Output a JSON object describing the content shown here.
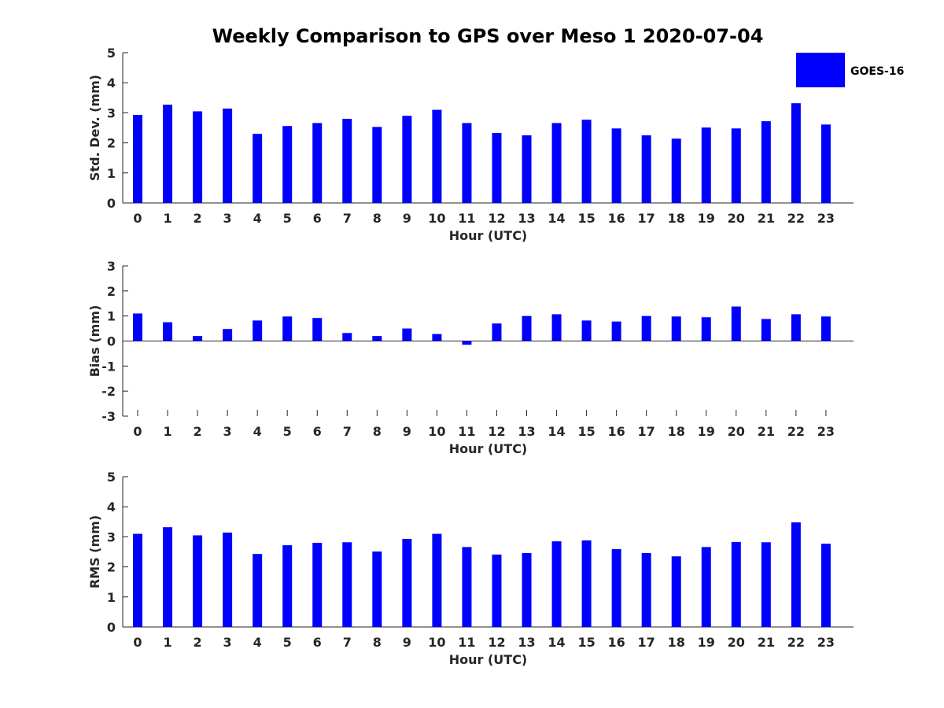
{
  "chart_data": [
    {
      "type": "bar",
      "title": "Weekly Comparison to GPS over Meso 1 2020-07-04",
      "xlabel": "Hour (UTC)",
      "ylabel": "Std. Dev. (mm)",
      "ylim": [
        0,
        5
      ],
      "yticks": [
        "0",
        "1",
        "2",
        "3",
        "4",
        "5"
      ],
      "categories": [
        "0",
        "1",
        "2",
        "3",
        "4",
        "5",
        "6",
        "7",
        "8",
        "9",
        "10",
        "11",
        "12",
        "13",
        "14",
        "15",
        "16",
        "17",
        "18",
        "19",
        "20",
        "21",
        "22",
        "23"
      ],
      "series": [
        {
          "name": "GOES-16",
          "color": "#0000ff",
          "values": [
            2.93,
            3.27,
            3.05,
            3.14,
            2.3,
            2.56,
            2.66,
            2.8,
            2.53,
            2.9,
            3.1,
            2.66,
            2.33,
            2.25,
            2.66,
            2.77,
            2.48,
            2.25,
            2.14,
            2.51,
            2.48,
            2.72,
            3.32,
            2.61
          ]
        }
      ],
      "legend": {
        "label": "GOES-16",
        "position": "top-right",
        "color": "#0000ff"
      }
    },
    {
      "type": "bar",
      "xlabel": "Hour (UTC)",
      "ylabel": "Bias (mm)",
      "ylim": [
        -3,
        3
      ],
      "yticks": [
        "-3",
        "-2",
        "-1",
        "0",
        "1",
        "2",
        "3"
      ],
      "categories": [
        "0",
        "1",
        "2",
        "3",
        "4",
        "5",
        "6",
        "7",
        "8",
        "9",
        "10",
        "11",
        "12",
        "13",
        "14",
        "15",
        "16",
        "17",
        "18",
        "19",
        "20",
        "21",
        "22",
        "23"
      ],
      "series": [
        {
          "name": "GOES-16",
          "color": "#0000ff",
          "values": [
            1.1,
            0.75,
            0.2,
            0.48,
            0.82,
            0.98,
            0.92,
            0.32,
            0.2,
            0.5,
            0.28,
            -0.15,
            0.7,
            1.0,
            1.07,
            0.82,
            0.78,
            1.0,
            0.98,
            0.95,
            1.38,
            0.88,
            1.07,
            0.98
          ]
        }
      ]
    },
    {
      "type": "bar",
      "xlabel": "Hour (UTC)",
      "ylabel": "RMS (mm)",
      "ylim": [
        0,
        5
      ],
      "yticks": [
        "0",
        "1",
        "2",
        "3",
        "4",
        "5"
      ],
      "categories": [
        "0",
        "1",
        "2",
        "3",
        "4",
        "5",
        "6",
        "7",
        "8",
        "9",
        "10",
        "11",
        "12",
        "13",
        "14",
        "15",
        "16",
        "17",
        "18",
        "19",
        "20",
        "21",
        "22",
        "23"
      ],
      "series": [
        {
          "name": "GOES-16",
          "color": "#0000ff",
          "values": [
            3.1,
            3.32,
            3.05,
            3.14,
            2.43,
            2.72,
            2.8,
            2.82,
            2.51,
            2.93,
            3.1,
            2.66,
            2.41,
            2.46,
            2.85,
            2.88,
            2.59,
            2.46,
            2.35,
            2.66,
            2.83,
            2.82,
            3.48,
            2.77
          ]
        }
      ]
    }
  ]
}
